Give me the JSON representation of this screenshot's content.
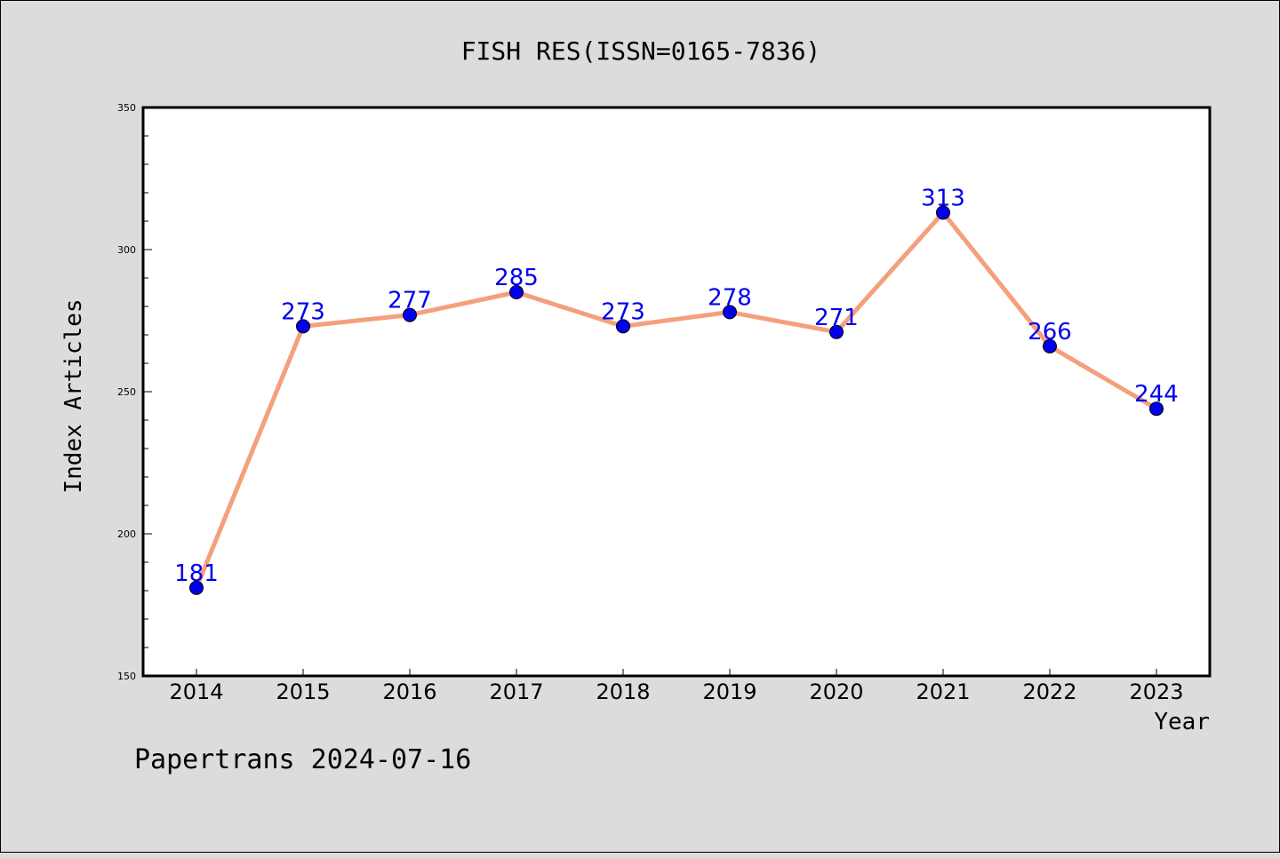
{
  "chart_data": {
    "type": "line",
    "title": "FISH RES(ISSN=0165-7836)",
    "xlabel": "Year",
    "ylabel": "Index Articles",
    "categories": [
      "2014",
      "2015",
      "2016",
      "2017",
      "2018",
      "2019",
      "2020",
      "2021",
      "2022",
      "2023"
    ],
    "series": [
      {
        "values": [
          181,
          273,
          277,
          285,
          273,
          278,
          271,
          313,
          266,
          244
        ]
      }
    ],
    "ylim": [
      150,
      350
    ],
    "yticks": [
      "150",
      "200",
      "250",
      "300",
      "350"
    ],
    "grid": false,
    "colors": {
      "line": "#f4a07c",
      "marker": "#0000ee",
      "label": "#0000ee",
      "background": "#dcdcdc",
      "plot": "#ffffff"
    }
  },
  "footer": "Papertrans 2024-07-16"
}
